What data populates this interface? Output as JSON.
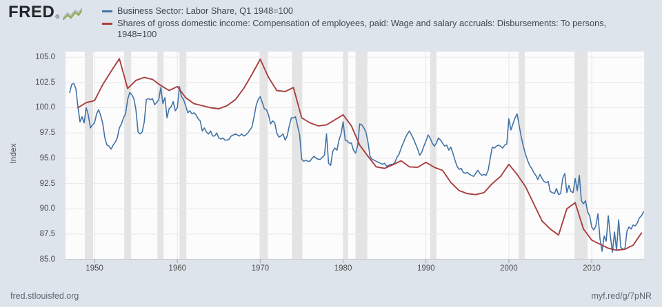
{
  "header": {
    "logo_text": "FRED",
    "logo_registered": "®",
    "logo_chart_icon": "line-chart-squiggle-icon",
    "legend": [
      {
        "label": "Business Sector: Labor Share, Q1 1948=100"
      },
      {
        "label": "Shares of gross domestic income: Compensation of employees, paid: Wage and salary accruals: Disbursements: To persons, 1948=100"
      }
    ]
  },
  "y_axis": {
    "title": "Index"
  },
  "footer": {
    "left_link": "fred.stlouisfed.org",
    "right_link": "myf.red/g/7pNR"
  },
  "colors": {
    "page_background": "#dee4eb",
    "plot_background": "#fcfcfd",
    "gridline": "#e7e7e8",
    "recession_band": "#e4e4e5",
    "axis_line": "#c2c2c2",
    "tick_mark": "#9aa2ab",
    "blue_series": "#4272a6",
    "red_series": "#a93e3e",
    "legend_text": "#3f4850",
    "tick_text": "#4d4d4d",
    "footer_text": "#5e6974"
  },
  "chart_data": {
    "type": "line",
    "title": "",
    "xlabel": "",
    "ylabel": "Index",
    "xlim": [
      1946.5,
      2016.4
    ],
    "ylim": [
      84.98,
      105.55
    ],
    "y_ticks": [
      105.0,
      102.5,
      100.0,
      97.5,
      95.0,
      92.5,
      90.0,
      87.5,
      85.0
    ],
    "x_ticks": [
      1950,
      1960,
      1970,
      1980,
      1990,
      2000,
      2010
    ],
    "grid": true,
    "legend_position": "top-left",
    "recession_bands": [
      [
        1948.83,
        1949.83
      ],
      [
        1953.58,
        1954.42
      ],
      [
        1957.58,
        1958.33
      ],
      [
        1960.25,
        1961.08
      ],
      [
        1969.92,
        1970.92
      ],
      [
        1973.83,
        1975.08
      ],
      [
        1980.0,
        1980.58
      ],
      [
        1981.5,
        1982.92
      ],
      [
        1990.5,
        1991.25
      ],
      [
        2001.17,
        2001.92
      ],
      [
        2007.92,
        2009.5
      ]
    ],
    "series": [
      {
        "name": "Business Sector: Labor Share, Q1 1948=100",
        "color": "#4272a6",
        "frequency": "quarterly",
        "start": 1947.0,
        "step": 0.25,
        "values": [
          101.5,
          102.3,
          102.4,
          101.9,
          100.1,
          98.6,
          99.1,
          98.5,
          100.0,
          99.3,
          98.0,
          98.3,
          98.5,
          99.4,
          99.8,
          99.2,
          98.4,
          97.0,
          96.3,
          96.2,
          95.9,
          96.3,
          96.6,
          97.0,
          98.0,
          98.4,
          99.0,
          99.4,
          100.8,
          101.5,
          101.3,
          100.9,
          99.8,
          97.6,
          97.4,
          97.6,
          98.6,
          100.8,
          100.9,
          100.8,
          100.9,
          100.3,
          100.5,
          100.8,
          102.0,
          100.4,
          101.0,
          99.0,
          99.9,
          100.1,
          100.6,
          99.7,
          100.0,
          102.1,
          101.1,
          100.8,
          100.2,
          99.5,
          99.7,
          99.4,
          99.5,
          99.3,
          98.9,
          98.7,
          97.7,
          98.0,
          97.6,
          97.4,
          97.7,
          97.2,
          97.2,
          97.5,
          97.0,
          96.9,
          97.0,
          96.8,
          96.8,
          96.9,
          97.2,
          97.3,
          97.4,
          97.3,
          97.2,
          97.4,
          97.2,
          97.3,
          97.5,
          97.8,
          98.1,
          99.1,
          100.2,
          100.8,
          101.1,
          100.5,
          99.9,
          99.8,
          99.3,
          98.4,
          98.7,
          98.5,
          97.5,
          97.1,
          97.2,
          97.4,
          96.8,
          97.2,
          98.2,
          99.0,
          99.0,
          99.1,
          98.2,
          97.3,
          94.9,
          94.7,
          94.8,
          94.7,
          94.7,
          95.0,
          95.2,
          95.0,
          94.9,
          94.9,
          95.1,
          95.3,
          97.4,
          94.5,
          94.3,
          95.7,
          96.0,
          95.8,
          96.8,
          97.4,
          98.6,
          96.8,
          96.7,
          96.5,
          96.5,
          95.8,
          95.5,
          96.2,
          98.4,
          98.3,
          98.0,
          97.6,
          96.6,
          95.2,
          94.9,
          94.8,
          94.7,
          94.6,
          94.5,
          94.4,
          94.5,
          94.2,
          94.3,
          94.4,
          94.4,
          94.6,
          95.1,
          95.4,
          96.0,
          96.5,
          97.0,
          97.4,
          97.7,
          97.3,
          96.9,
          96.4,
          95.9,
          95.3,
          95.6,
          96.2,
          96.7,
          97.3,
          97.0,
          96.5,
          96.2,
          96.5,
          97.0,
          96.8,
          96.5,
          96.2,
          96.3,
          95.8,
          96.1,
          95.5,
          94.8,
          94.2,
          93.9,
          94.0,
          93.6,
          93.5,
          93.6,
          93.4,
          93.3,
          93.2,
          93.5,
          93.8,
          93.5,
          93.3,
          93.4,
          93.3,
          93.8,
          95.0,
          96.1,
          96.0,
          96.2,
          96.3,
          96.2,
          96.0,
          96.3,
          96.4,
          98.9,
          97.8,
          98.4,
          99.0,
          99.4,
          98.2,
          97.1,
          96.2,
          95.4,
          94.8,
          94.3,
          94.0,
          93.6,
          93.3,
          92.9,
          93.4,
          93.0,
          92.7,
          92.6,
          92.7,
          91.7,
          91.6,
          91.5,
          92.0,
          91.4,
          91.5,
          93.0,
          93.5,
          91.6,
          92.3,
          91.7,
          91.6,
          93.0,
          91.8,
          93.3,
          90.8,
          90.5,
          90.8,
          89.7,
          89.3,
          88.2,
          87.9,
          88.3,
          89.5,
          87.0,
          85.8,
          87.3,
          86.8,
          89.3,
          87.3,
          85.7,
          87.7,
          85.9,
          88.9,
          86.2,
          86.0,
          86.0,
          87.8,
          88.2,
          88.0,
          88.4,
          88.3,
          88.6,
          89.1,
          89.3,
          89.7
        ]
      },
      {
        "name": "Shares of gross domestic income: Compensation of employees, paid: Wage and salary accruals: Disbursements: To persons, 1948=100",
        "color": "#a93e3e",
        "frequency": "annual",
        "start": 1948,
        "step": 1,
        "values": [
          100.0,
          100.5,
          100.7,
          102.3,
          103.6,
          104.85,
          101.9,
          102.7,
          103.0,
          102.8,
          102.2,
          101.7,
          102.1,
          101.0,
          100.4,
          100.2,
          100.0,
          99.9,
          100.2,
          100.8,
          101.9,
          103.3,
          104.8,
          103.0,
          101.7,
          101.6,
          102.0,
          99.0,
          98.5,
          98.2,
          98.3,
          98.8,
          99.3,
          98.2,
          96.3,
          95.2,
          94.15,
          94.0,
          94.35,
          94.75,
          94.15,
          94.1,
          94.6,
          94.1,
          93.8,
          92.6,
          91.8,
          91.5,
          91.4,
          91.6,
          92.5,
          93.2,
          94.4,
          93.4,
          92.2,
          90.5,
          88.8,
          88.0,
          87.4,
          90.0,
          90.6,
          88.0,
          86.9,
          86.5,
          86.1,
          85.9,
          86.0,
          86.4,
          87.6
        ]
      }
    ]
  }
}
